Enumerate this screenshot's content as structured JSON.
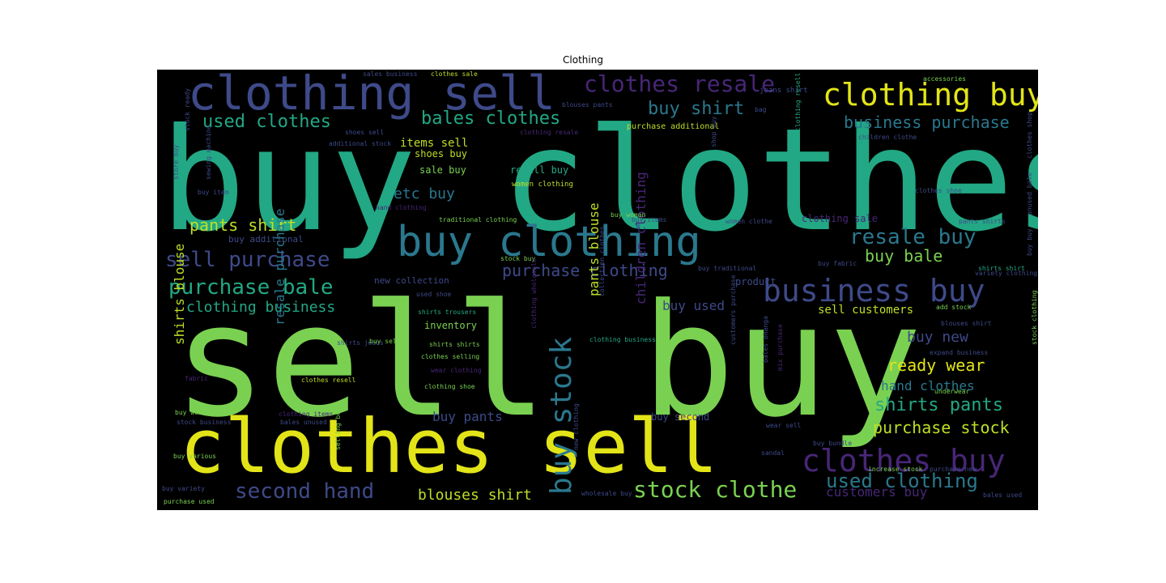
{
  "title": "Clothing",
  "palette": {
    "background": "#000000",
    "yellow": "#e2e418",
    "lime": "#7ad151",
    "green": "#3bbb75",
    "teal": "#22a884",
    "cyan": "#2a788e",
    "blue": "#3e4a89",
    "purple": "#482677",
    "light": "#bddf26"
  },
  "words": [
    {
      "text": "buy clothes",
      "color": "#22a884"
    },
    {
      "text": "sell buy",
      "color": "#7ad151"
    },
    {
      "text": "clothes sell",
      "color": "#e2e418"
    },
    {
      "text": "buy clothing",
      "color": "#2a788e"
    },
    {
      "text": "clothing sell",
      "color": "#3e4a89"
    },
    {
      "text": "clothing buy",
      "color": "#e2e418"
    },
    {
      "text": "clothes resale",
      "color": "#482677"
    },
    {
      "text": "business buy",
      "color": "#3e4a89"
    },
    {
      "text": "buy stock",
      "color": "#2a788e"
    },
    {
      "text": "clothes buy",
      "color": "#482677"
    },
    {
      "text": "stock clothe",
      "color": "#7ad151"
    },
    {
      "text": "second hand",
      "color": "#3e4a89"
    },
    {
      "text": "used clothing",
      "color": "#2a788e"
    },
    {
      "text": "purchase bale",
      "color": "#22a884"
    },
    {
      "text": "sell purchase",
      "color": "#3e4a89"
    },
    {
      "text": "resale buy",
      "color": "#2a788e"
    },
    {
      "text": "used clothes",
      "color": "#22a884"
    },
    {
      "text": "bales clothes",
      "color": "#22a884"
    },
    {
      "text": "buy shirt",
      "color": "#2a788e"
    },
    {
      "text": "business purchase",
      "color": "#2a788e"
    },
    {
      "text": "purchase clothing",
      "color": "#3e4a89"
    },
    {
      "text": "clothing business",
      "color": "#22a884"
    },
    {
      "text": "pants shirt",
      "color": "#bddf26"
    },
    {
      "text": "etc buy",
      "color": "#2a788e"
    },
    {
      "text": "buy bale",
      "color": "#7ad151"
    },
    {
      "text": "ready wear",
      "color": "#e2e418"
    },
    {
      "text": "shirts pants",
      "color": "#22a884"
    },
    {
      "text": "purchase stock",
      "color": "#bddf26"
    },
    {
      "text": "hand clothes",
      "color": "#2a788e"
    },
    {
      "text": "buy new",
      "color": "#3e4a89"
    },
    {
      "text": "blouses shirt",
      "color": "#bddf26"
    },
    {
      "text": "buy pants",
      "color": "#3e4a89"
    },
    {
      "text": "customers buy",
      "color": "#482677"
    },
    {
      "text": "sell customers",
      "color": "#bddf26"
    },
    {
      "text": "buy used",
      "color": "#3e4a89"
    },
    {
      "text": "items sell",
      "color": "#bddf26"
    },
    {
      "text": "shoes buy",
      "color": "#bddf26"
    },
    {
      "text": "resell buy",
      "color": "#22a884"
    },
    {
      "text": "sale buy",
      "color": "#7ad151"
    },
    {
      "text": "women clothing",
      "color": "#bddf26"
    },
    {
      "text": "inventory",
      "color": "#7ad151"
    },
    {
      "text": "new collection",
      "color": "#3e4a89"
    },
    {
      "text": "product",
      "color": "#3e4a89"
    },
    {
      "text": "buy additional",
      "color": "#3e4a89"
    },
    {
      "text": "traditional clothing",
      "color": "#7ad151"
    },
    {
      "text": "clothing sale",
      "color": "#482677"
    },
    {
      "text": "purchase additional",
      "color": "#bddf26"
    },
    {
      "text": "buy second",
      "color": "#3e4a89"
    },
    {
      "text": "pants blouse",
      "color": "#bddf26"
    },
    {
      "text": "children clothing",
      "color": "#482677"
    },
    {
      "text": "shirts blouse",
      "color": "#bddf26"
    },
    {
      "text": "resale purchase",
      "color": "#2a788e"
    },
    {
      "text": "accessories",
      "color": "#7ad151"
    },
    {
      "text": "jeans shirt",
      "color": "#3e4a89"
    },
    {
      "text": "bag",
      "color": "#3e4a89"
    },
    {
      "text": "shoes sell",
      "color": "#3e4a89"
    },
    {
      "text": "additional stock",
      "color": "#3e4a89"
    },
    {
      "text": "sales business",
      "color": "#3e4a89"
    },
    {
      "text": "clothes sale",
      "color": "#bddf26"
    },
    {
      "text": "blouses pants",
      "color": "#3e4a89"
    },
    {
      "text": "stock ready",
      "color": "#3e4a89"
    },
    {
      "text": "clothing resell",
      "color": "#22a884"
    },
    {
      "text": "clothes shoe",
      "color": "#3e4a89"
    },
    {
      "text": "pants shirts",
      "color": "#3e4a89"
    },
    {
      "text": "shirts shirt",
      "color": "#22a884"
    },
    {
      "text": "clothing resale",
      "color": "#482677"
    },
    {
      "text": "buy items",
      "color": "#3e4a89"
    },
    {
      "text": "women clothe",
      "color": "#3e4a89"
    },
    {
      "text": "stock buy",
      "color": "#7ad151"
    },
    {
      "text": "buy traditional",
      "color": "#3e4a89"
    },
    {
      "text": "variety clothing",
      "color": "#3e4a89"
    },
    {
      "text": "buy fabric",
      "color": "#3e4a89"
    },
    {
      "text": "shirts trousers",
      "color": "#22a884"
    },
    {
      "text": "shirts jeans",
      "color": "#3e4a89"
    },
    {
      "text": "buy sell",
      "color": "#7ad151"
    },
    {
      "text": "shirts shirts",
      "color": "#7ad151"
    },
    {
      "text": "clothes selling",
      "color": "#7ad151"
    },
    {
      "text": "wear clothing",
      "color": "#482677"
    },
    {
      "text": "clothing shoe",
      "color": "#7ad151"
    },
    {
      "text": "clothes resell",
      "color": "#bddf26"
    },
    {
      "text": "clothing items",
      "color": "#482677"
    },
    {
      "text": "bales unused",
      "color": "#3e4a89"
    },
    {
      "text": "buy women",
      "color": "#7ad151"
    },
    {
      "text": "stock business",
      "color": "#3e4a89"
    },
    {
      "text": "buy various",
      "color": "#7ad151"
    },
    {
      "text": "buy variety",
      "color": "#3e4a89"
    },
    {
      "text": "purchase used",
      "color": "#7ad151"
    },
    {
      "text": "wholesale buy",
      "color": "#3e4a89"
    },
    {
      "text": "bales used",
      "color": "#3e4a89"
    },
    {
      "text": "add stock",
      "color": "#7ad151"
    },
    {
      "text": "blouses shirt",
      "color": "#3e4a89"
    },
    {
      "text": "expand business",
      "color": "#3e4a89"
    },
    {
      "text": "underwear",
      "color": "#7ad151"
    },
    {
      "text": "bales bhanga",
      "color": "#3e4a89"
    },
    {
      "text": "mix purchase",
      "color": "#482677"
    },
    {
      "text": "wear sell",
      "color": "#3e4a89"
    },
    {
      "text": "buy bundle",
      "color": "#3e4a89"
    },
    {
      "text": "sandal",
      "color": "#3e4a89"
    },
    {
      "text": "increase stock",
      "color": "#7ad151"
    },
    {
      "text": "purchase new",
      "color": "#3e4a89"
    },
    {
      "text": "customers purchase",
      "color": "#3e4a89"
    },
    {
      "text": "clothing wholesale",
      "color": "#482677"
    },
    {
      "text": "fabric",
      "color": "#482677"
    },
    {
      "text": "clothing business",
      "color": "#22a884"
    },
    {
      "text": "buy item",
      "color": "#3e4a89"
    },
    {
      "text": "shop buy",
      "color": "#3e4a89"
    },
    {
      "text": "buy woman",
      "color": "#7ad151"
    },
    {
      "text": "used shoe",
      "color": "#3e4a89"
    },
    {
      "text": "store buy",
      "color": "#3e4a89"
    },
    {
      "text": "sewing machine",
      "color": "#3e4a89"
    },
    {
      "text": "clothes shop",
      "color": "#3e4a89"
    },
    {
      "text": "hand clothing",
      "color": "#482677"
    },
    {
      "text": "collection clothes",
      "color": "#3e4a89"
    },
    {
      "text": "children clothe",
      "color": "#3e4a89"
    },
    {
      "text": "selling buy",
      "color": "#7ad151"
    },
    {
      "text": "stock clothing",
      "color": "#7ad151"
    },
    {
      "text": "unused bale",
      "color": "#3e4a89"
    },
    {
      "text": "new clothing",
      "color": "#3e4a89"
    },
    {
      "text": "buy buy",
      "color": "#3e4a89"
    }
  ]
}
